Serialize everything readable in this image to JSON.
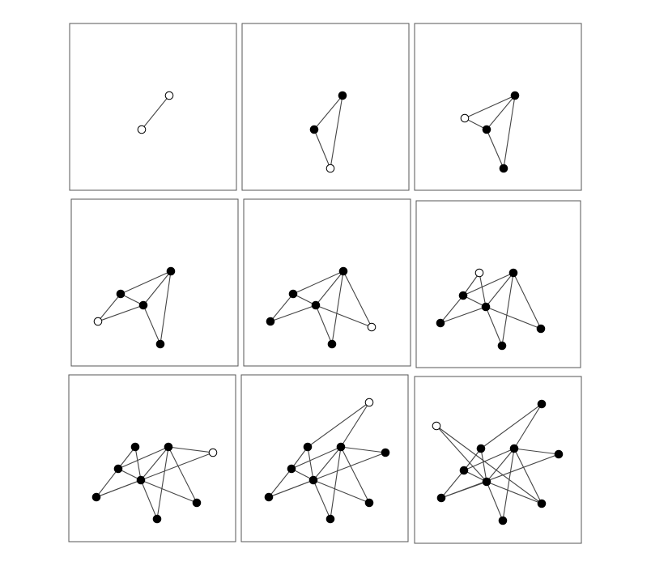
{
  "colors": {
    "background": "#ffffff",
    "frame": "#555555",
    "edge": "#444444",
    "node_filled": "#000000",
    "node_open_fill": "#ffffff",
    "node_open_stroke": "#000000"
  },
  "panels": [
    {
      "id": 1,
      "nodes": [
        {
          "id": "A",
          "state": "open"
        },
        {
          "id": "B",
          "state": "open"
        }
      ],
      "edges": [
        [
          "A",
          "B"
        ]
      ]
    },
    {
      "id": 2,
      "nodes": [
        {
          "id": "A",
          "state": "filled"
        },
        {
          "id": "B",
          "state": "filled"
        },
        {
          "id": "C",
          "state": "open"
        }
      ],
      "edges": [
        [
          "A",
          "B"
        ],
        [
          "A",
          "C"
        ],
        [
          "B",
          "C"
        ]
      ]
    },
    {
      "id": 3,
      "nodes": [
        {
          "id": "A",
          "state": "filled"
        },
        {
          "id": "B",
          "state": "filled"
        },
        {
          "id": "C",
          "state": "filled"
        },
        {
          "id": "D",
          "state": "open"
        }
      ],
      "edges": [
        [
          "A",
          "B"
        ],
        [
          "A",
          "C"
        ],
        [
          "B",
          "C"
        ],
        [
          "D",
          "A"
        ],
        [
          "D",
          "B"
        ]
      ]
    },
    {
      "id": 4,
      "nodes": [
        {
          "id": "A",
          "state": "filled"
        },
        {
          "id": "B",
          "state": "filled"
        },
        {
          "id": "C",
          "state": "filled"
        },
        {
          "id": "D",
          "state": "filled"
        },
        {
          "id": "E",
          "state": "open"
        }
      ],
      "edges": [
        [
          "A",
          "B"
        ],
        [
          "A",
          "C"
        ],
        [
          "B",
          "C"
        ],
        [
          "D",
          "A"
        ],
        [
          "D",
          "B"
        ],
        [
          "E",
          "D"
        ],
        [
          "E",
          "B"
        ]
      ]
    },
    {
      "id": 5,
      "nodes": [
        {
          "id": "A",
          "state": "filled"
        },
        {
          "id": "B",
          "state": "filled"
        },
        {
          "id": "C",
          "state": "filled"
        },
        {
          "id": "D",
          "state": "filled"
        },
        {
          "id": "E",
          "state": "filled"
        },
        {
          "id": "F",
          "state": "open"
        }
      ],
      "edges": [
        [
          "A",
          "B"
        ],
        [
          "A",
          "C"
        ],
        [
          "B",
          "C"
        ],
        [
          "D",
          "A"
        ],
        [
          "D",
          "B"
        ],
        [
          "E",
          "D"
        ],
        [
          "E",
          "B"
        ],
        [
          "F",
          "A"
        ],
        [
          "F",
          "B"
        ]
      ]
    },
    {
      "id": 6,
      "nodes": [
        {
          "id": "A",
          "state": "filled"
        },
        {
          "id": "B",
          "state": "filled"
        },
        {
          "id": "C",
          "state": "filled"
        },
        {
          "id": "D",
          "state": "filled"
        },
        {
          "id": "E",
          "state": "filled"
        },
        {
          "id": "F",
          "state": "filled"
        },
        {
          "id": "G",
          "state": "open"
        }
      ],
      "edges": [
        [
          "A",
          "B"
        ],
        [
          "A",
          "C"
        ],
        [
          "B",
          "C"
        ],
        [
          "D",
          "A"
        ],
        [
          "D",
          "B"
        ],
        [
          "E",
          "D"
        ],
        [
          "E",
          "B"
        ],
        [
          "F",
          "A"
        ],
        [
          "F",
          "B"
        ],
        [
          "G",
          "D"
        ],
        [
          "G",
          "B"
        ]
      ]
    },
    {
      "id": 7,
      "nodes": [
        {
          "id": "A",
          "state": "filled"
        },
        {
          "id": "B",
          "state": "filled"
        },
        {
          "id": "C",
          "state": "filled"
        },
        {
          "id": "D",
          "state": "filled"
        },
        {
          "id": "E",
          "state": "filled"
        },
        {
          "id": "F",
          "state": "filled"
        },
        {
          "id": "G",
          "state": "filled"
        },
        {
          "id": "H",
          "state": "open"
        }
      ],
      "edges": [
        [
          "A",
          "B"
        ],
        [
          "A",
          "C"
        ],
        [
          "B",
          "C"
        ],
        [
          "D",
          "A"
        ],
        [
          "D",
          "B"
        ],
        [
          "E",
          "D"
        ],
        [
          "E",
          "B"
        ],
        [
          "F",
          "A"
        ],
        [
          "F",
          "B"
        ],
        [
          "G",
          "D"
        ],
        [
          "G",
          "B"
        ],
        [
          "H",
          "A"
        ],
        [
          "H",
          "E"
        ]
      ]
    },
    {
      "id": 8,
      "nodes": [
        {
          "id": "A",
          "state": "filled"
        },
        {
          "id": "B",
          "state": "filled"
        },
        {
          "id": "C",
          "state": "filled"
        },
        {
          "id": "D",
          "state": "filled"
        },
        {
          "id": "E",
          "state": "filled"
        },
        {
          "id": "F",
          "state": "filled"
        },
        {
          "id": "G",
          "state": "filled"
        },
        {
          "id": "H",
          "state": "filled"
        },
        {
          "id": "I",
          "state": "open"
        }
      ],
      "edges": [
        [
          "A",
          "B"
        ],
        [
          "A",
          "C"
        ],
        [
          "B",
          "C"
        ],
        [
          "D",
          "A"
        ],
        [
          "D",
          "B"
        ],
        [
          "E",
          "D"
        ],
        [
          "E",
          "B"
        ],
        [
          "F",
          "A"
        ],
        [
          "F",
          "B"
        ],
        [
          "G",
          "D"
        ],
        [
          "G",
          "B"
        ],
        [
          "H",
          "A"
        ],
        [
          "H",
          "E"
        ],
        [
          "I",
          "A"
        ],
        [
          "I",
          "G"
        ]
      ]
    },
    {
      "id": 9,
      "nodes": [
        {
          "id": "A",
          "state": "filled"
        },
        {
          "id": "B",
          "state": "filled"
        },
        {
          "id": "C",
          "state": "filled"
        },
        {
          "id": "D",
          "state": "filled"
        },
        {
          "id": "E",
          "state": "filled"
        },
        {
          "id": "F",
          "state": "filled"
        },
        {
          "id": "G",
          "state": "filled"
        },
        {
          "id": "H",
          "state": "filled"
        },
        {
          "id": "I",
          "state": "filled"
        },
        {
          "id": "J",
          "state": "open"
        }
      ],
      "edges": [
        [
          "A",
          "B"
        ],
        [
          "A",
          "C"
        ],
        [
          "B",
          "C"
        ],
        [
          "D",
          "A"
        ],
        [
          "D",
          "B"
        ],
        [
          "E",
          "D"
        ],
        [
          "E",
          "B"
        ],
        [
          "F",
          "A"
        ],
        [
          "F",
          "B"
        ],
        [
          "G",
          "D"
        ],
        [
          "G",
          "B"
        ],
        [
          "H",
          "A"
        ],
        [
          "H",
          "E"
        ],
        [
          "I",
          "A"
        ],
        [
          "I",
          "G"
        ],
        [
          "J",
          "B"
        ],
        [
          "J",
          "F"
        ]
      ]
    }
  ]
}
